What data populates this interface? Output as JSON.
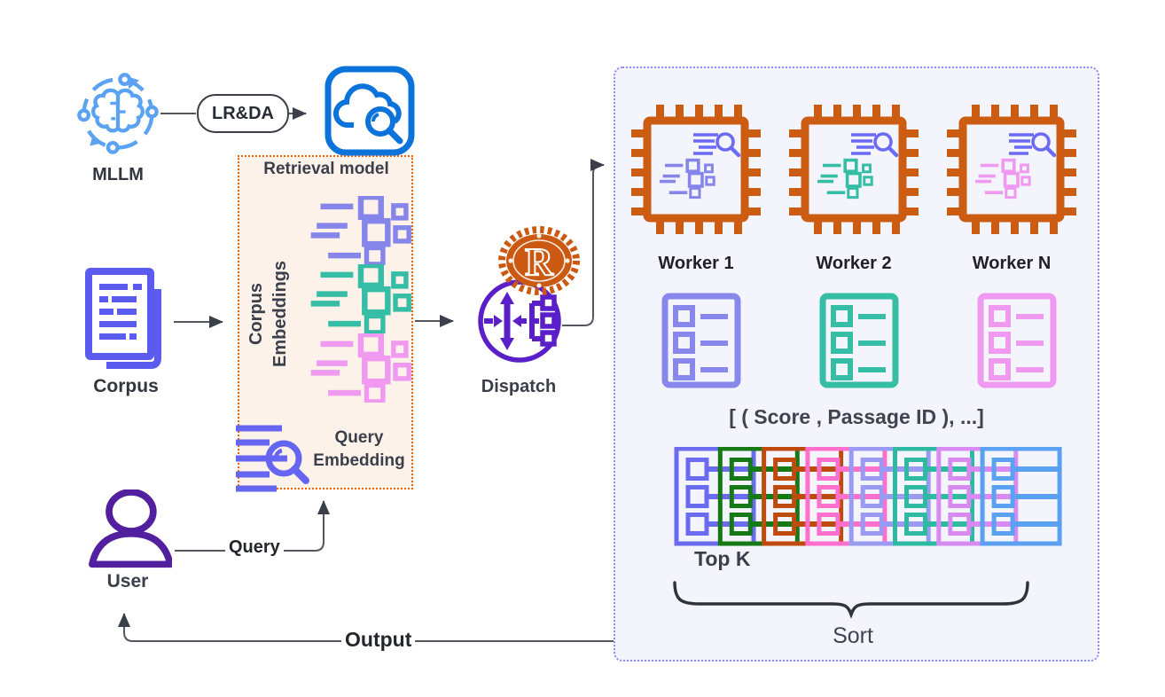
{
  "nodes": {
    "mllm": {
      "label": "MLLM"
    },
    "lrda": {
      "label": "LR&DA"
    },
    "retrieval_model": {
      "label": "Retrieval model"
    },
    "corpus": {
      "label": "Corpus"
    },
    "corpus_embeddings": {
      "line1": "Corpus",
      "line2": "Embeddings"
    },
    "query_embedding": {
      "line1": "Query",
      "line2": "Embedding"
    },
    "dispatch": {
      "label": "Dispatch"
    },
    "user": {
      "label": "User"
    }
  },
  "edges": {
    "query": "Query",
    "output": "Output"
  },
  "workers": [
    {
      "label": "Worker 1",
      "color": "#8585ea"
    },
    {
      "label": "Worker 2",
      "color": "#35bda6"
    },
    {
      "label": "Worker N",
      "color": "#ef9af0"
    }
  ],
  "result_lists": {
    "colors": [
      "#8888ec",
      "#35bda6",
      "#ef9af0"
    ]
  },
  "embedding_clusters": {
    "colors": [
      "#8585ea",
      "#35bda6",
      "#ef9af0"
    ]
  },
  "results_tuple": "[  ( Score  , Passage ID ), ...]",
  "topk": {
    "label": "Top K",
    "colors": [
      "#6b6bf0",
      "#157a15",
      "#bf4a0d",
      "#ff70cc",
      "#9a9af2",
      "#2eb9a2",
      "#d98af0",
      "#5aa1f2"
    ]
  },
  "sort_label": "Sort",
  "palette": {
    "mllm_blue": "#5ba3f2",
    "cloud_blue": "#0c73da",
    "retrieval_box_border": "#e8650d",
    "retrieval_box_fill": "#fdf2ea",
    "corpus_indigo": "#5b5bf0",
    "query_purple": "#6565f2",
    "dispatch_purple": "#5a1fc8",
    "rust_orange": "#cb5911",
    "chip_orange": "#cc5c12",
    "workers_box_border": "#8c8cf2",
    "workers_box_fill": "#f4f4fc",
    "user_purple": "#521f9e",
    "line_gray": "#53575e",
    "text_dark": "#32363e"
  }
}
